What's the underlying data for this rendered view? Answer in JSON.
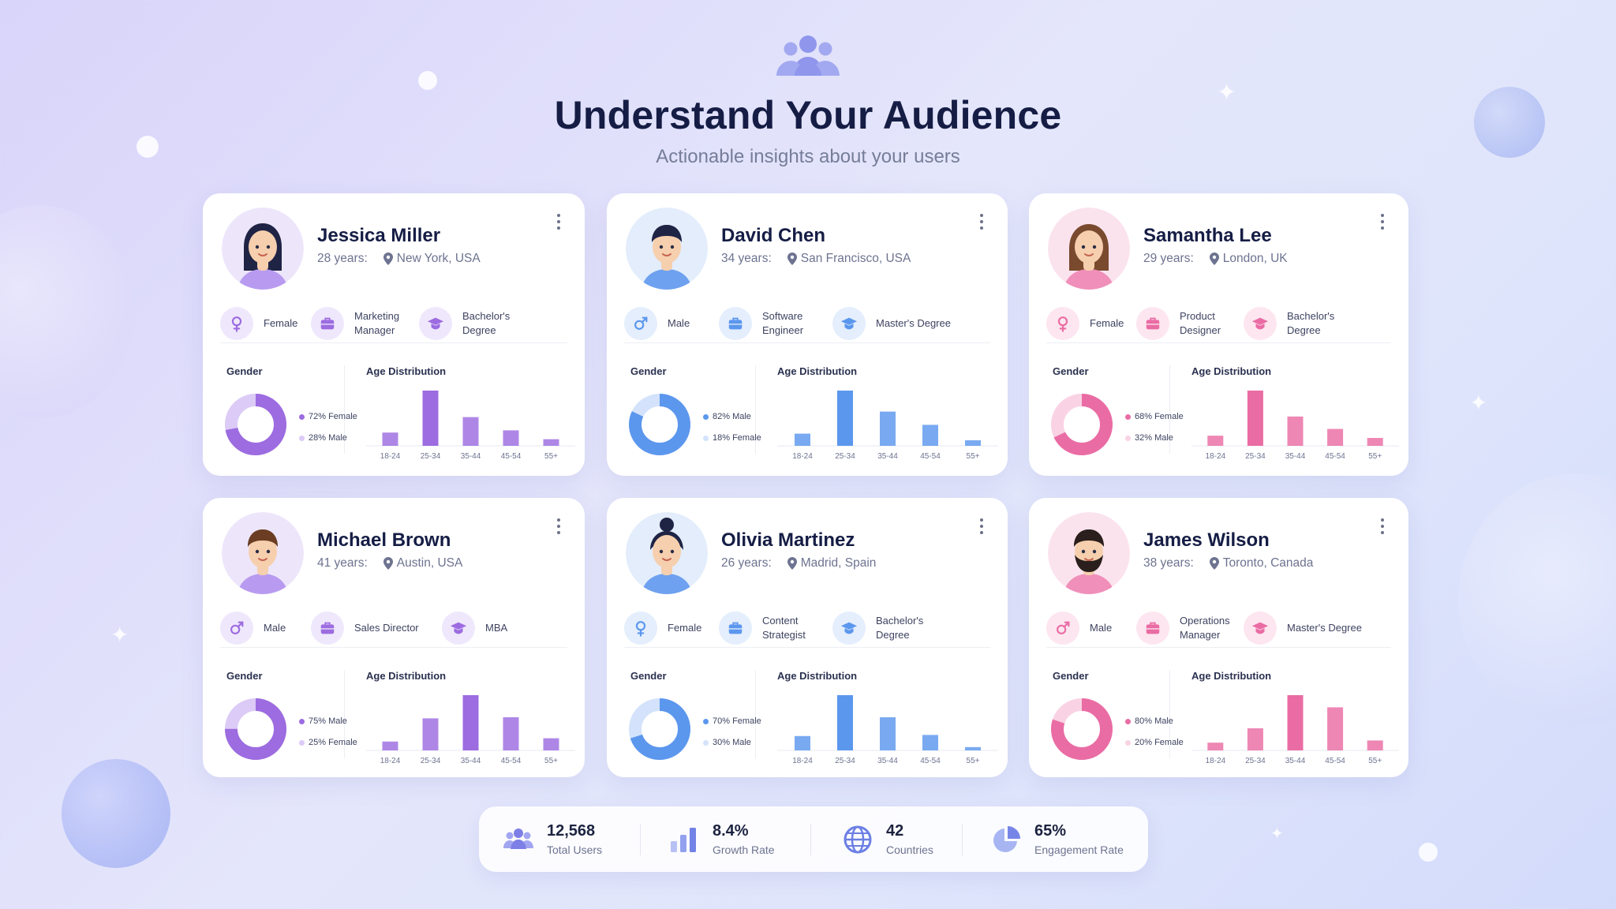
{
  "header": {
    "title": "Understand Your Audience",
    "subtitle": "Actionable insights about your users"
  },
  "colors": {
    "purple": "#9c6ce0",
    "purple_light": "#dccbf6",
    "blue": "#5c97ee",
    "blue_light": "#d4e3fb",
    "pink": "#ea6ca4",
    "pink_light": "#f9d3e4"
  },
  "labels": {
    "gender": "Gender",
    "age": "Age Distribution"
  },
  "age_groups": [
    "18-24",
    "25-34",
    "35-44",
    "45-54",
    "55+"
  ],
  "cards": [
    {
      "name": "Jessica Miller",
      "age": "28 years:",
      "location": "New York, USA",
      "theme": "purple",
      "avatar": "female-long-hair",
      "gender_icon": "female-icon",
      "gender": "Female",
      "job": "Marketing Manager",
      "degree": "Bachelor's Degree",
      "donut_pct": 72,
      "legend": [
        {
          "label": "72% Female"
        },
        {
          "label": "28% Male"
        }
      ],
      "age_values": [
        12,
        50,
        26,
        14,
        6
      ]
    },
    {
      "name": "David Chen",
      "age": "34 years:",
      "location": "San Francisco, USA",
      "theme": "blue",
      "avatar": "male-short-hair",
      "gender_icon": "male-icon",
      "gender": "Male",
      "job": "Software Engineer",
      "degree": "Master's Degree",
      "donut_pct": 82,
      "legend": [
        {
          "label": "82% Male"
        },
        {
          "label": "18% Female"
        }
      ],
      "age_values": [
        11,
        50,
        31,
        19,
        5
      ]
    },
    {
      "name": "Samantha Lee",
      "age": "29 years:",
      "location": "London, UK",
      "theme": "pink",
      "avatar": "female-brown-hair",
      "gender_icon": "female-icon",
      "gender": "Female",
      "job": "Product Designer",
      "degree": "Bachelor's Degree",
      "donut_pct": 68,
      "legend": [
        {
          "label": "68% Female"
        },
        {
          "label": "32% Male"
        }
      ],
      "age_values": [
        9,
        49,
        26,
        15,
        7
      ]
    },
    {
      "name": "Michael Brown",
      "age": "41 years:",
      "location": "Austin, USA",
      "theme": "purple",
      "avatar": "male-brown-hair",
      "gender_icon": "male-icon",
      "gender": "Male",
      "job": "Sales Director",
      "degree": "MBA",
      "donut_pct": 75,
      "legend": [
        {
          "label": "75% Male"
        },
        {
          "label": "25% Female"
        }
      ],
      "age_values": [
        8,
        29,
        50,
        30,
        11
      ]
    },
    {
      "name": "Olivia Martinez",
      "age": "26 years:",
      "location": "Madrid, Spain",
      "theme": "blue",
      "avatar": "female-bun-hair",
      "gender_icon": "female-icon",
      "gender": "Female",
      "job": "Content Strategist",
      "degree": "Bachelor's Degree",
      "donut_pct": 70,
      "legend": [
        {
          "label": "70% Female"
        },
        {
          "label": "30% Male"
        }
      ],
      "age_values": [
        13,
        50,
        30,
        14,
        3
      ]
    },
    {
      "name": "James Wilson",
      "age": "38 years:",
      "location": "Toronto, Canada",
      "theme": "pink",
      "avatar": "male-bearded",
      "gender_icon": "male-icon",
      "gender": "Male",
      "job": "Operations Manager",
      "degree": "Master's Degree",
      "donut_pct": 80,
      "legend": [
        {
          "label": "80% Male"
        },
        {
          "label": "20% Female"
        }
      ],
      "age_values": [
        7,
        20,
        50,
        39,
        9
      ]
    }
  ],
  "stats": [
    {
      "value": "12,568",
      "label": "Total Users",
      "icon": "users-icon"
    },
    {
      "value": "8.4%",
      "label": "Growth Rate",
      "icon": "bar-chart-icon"
    },
    {
      "value": "42",
      "label": "Countries",
      "icon": "globe-icon"
    },
    {
      "value": "65%",
      "label": "Engagement Rate",
      "icon": "pie-chart-icon"
    }
  ]
}
